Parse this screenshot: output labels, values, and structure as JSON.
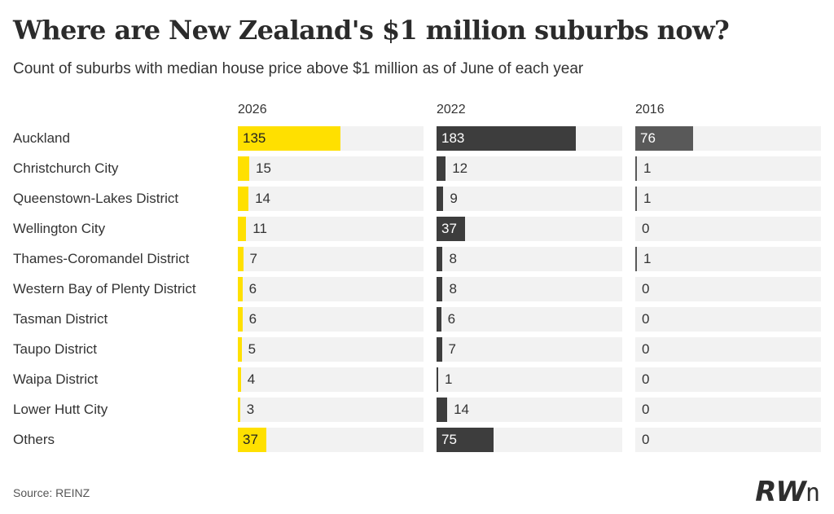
{
  "title": "Where are New Zealand's $1 million suburbs now?",
  "subtitle": "Count of suburbs with median house price above $1 million as of June of each year",
  "source": "Source: REINZ",
  "logo": "RWn",
  "chart_data": {
    "type": "bar",
    "title": "Where are New Zealand's $1 million suburbs now?",
    "subtitle": "Count of suburbs with median house price above $1 million as of June of each year",
    "categories": [
      "Auckland",
      "Christchurch City",
      "Queenstown-Lakes District",
      "Wellington City",
      "Thames-Coromandel District",
      "Western Bay of Plenty District",
      "Tasman District",
      "Taupo District",
      "Waipa District",
      "Lower Hutt City",
      "Others"
    ],
    "series": [
      {
        "name": "2026",
        "color": "#ffe000",
        "values": [
          135,
          15,
          14,
          11,
          7,
          6,
          6,
          5,
          4,
          3,
          37
        ]
      },
      {
        "name": "2022",
        "color": "#3d3d3d",
        "values": [
          183,
          12,
          9,
          37,
          8,
          8,
          6,
          7,
          1,
          14,
          75
        ]
      },
      {
        "name": "2016",
        "color": "#595959",
        "values": [
          76,
          1,
          1,
          0,
          1,
          0,
          0,
          0,
          0,
          0,
          0
        ]
      }
    ],
    "xlim": [
      0,
      183
    ],
    "grid": false,
    "legend": "none"
  }
}
